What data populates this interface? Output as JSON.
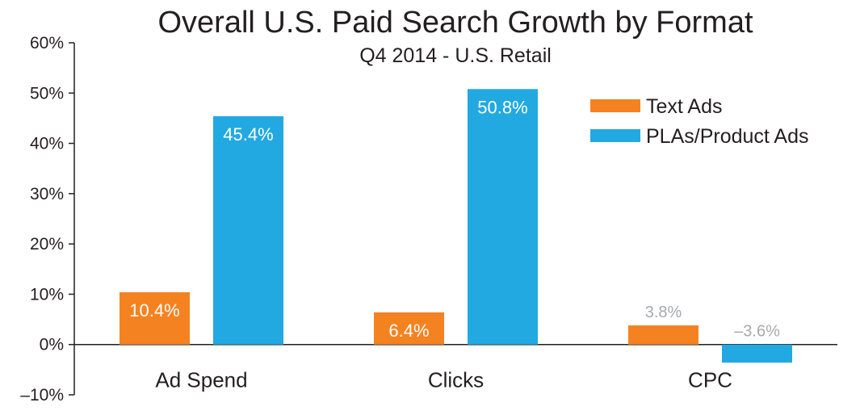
{
  "chart_data": {
    "type": "bar",
    "title": "Overall U.S. Paid Search Growth by Format",
    "subtitle": "Q4 2014 - U.S. Retail",
    "categories": [
      "Ad Spend",
      "Clicks",
      "CPC"
    ],
    "series": [
      {
        "name": "Text Ads",
        "color": "#f58220",
        "values": [
          10.4,
          6.4,
          3.8
        ],
        "labels": [
          "10.4%",
          "6.4%",
          "3.8%"
        ]
      },
      {
        "name": "PLAs/Product Ads",
        "color": "#22a9e1",
        "values": [
          45.4,
          50.8,
          -3.6
        ],
        "labels": [
          "45.4%",
          "50.8%",
          "–3.6%"
        ]
      }
    ],
    "y_ticks": [
      {
        "value": 60,
        "label": "60%"
      },
      {
        "value": 50,
        "label": "50%"
      },
      {
        "value": 40,
        "label": "40%"
      },
      {
        "value": 30,
        "label": "30%"
      },
      {
        "value": 20,
        "label": "20%"
      },
      {
        "value": 10,
        "label": "10%"
      },
      {
        "value": 0,
        "label": "0%"
      },
      {
        "value": -10,
        "label": "–10%"
      }
    ],
    "ylim": [
      -10,
      60
    ],
    "grid": false,
    "legend_position": "top-right"
  }
}
